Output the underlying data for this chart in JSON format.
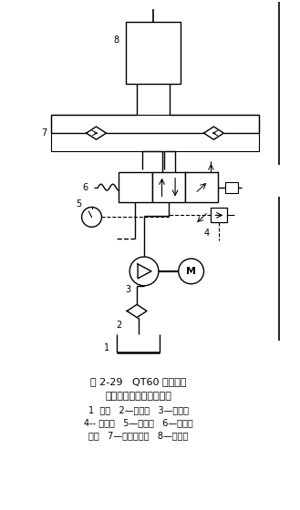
{
  "title_line1": "图 2-29   QT60 型塔式起",
  "title_line2": "重机升降液压系统原理图",
  "legend_line1": "1  油箱   2—过滤器   3—齿轮泵",
  "legend_line2": "4-- 溢流阀   5—压力表   6—手动换",
  "legend_line3": "向阀   7—双向液压锁   8—液压缸",
  "bg_color": "#ffffff",
  "line_color": "#000000",
  "label_8": "8",
  "label_7": "7",
  "label_6": "6",
  "label_5": "5",
  "label_4": "4",
  "label_3": "3",
  "label_2": "2",
  "label_1": "1"
}
